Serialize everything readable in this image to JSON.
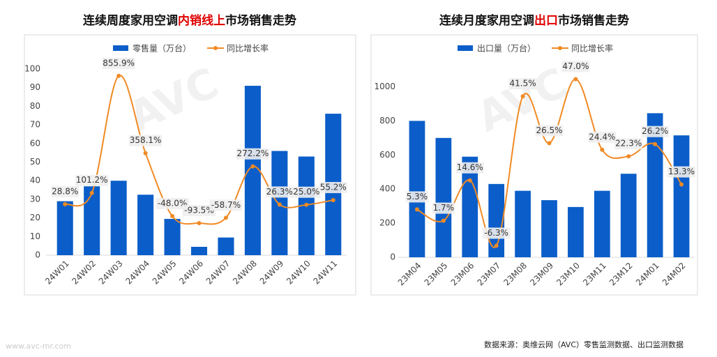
{
  "chart_data": [
    {
      "type": "bar-line",
      "title_parts": [
        "连续周度家用空调",
        "内销线上",
        "市场销售走势"
      ],
      "title_highlight": 1,
      "categories": [
        "24W01",
        "24W02",
        "24W03",
        "24W04",
        "24W05",
        "24W06",
        "24W07",
        "24W08",
        "24W09",
        "24W10",
        "24W11"
      ],
      "series": [
        {
          "name": "零售量（万台）",
          "color": "#0b5ec9",
          "values": [
            29,
            37,
            40,
            32.5,
            19.5,
            4.5,
            9.5,
            91,
            56,
            53,
            76
          ]
        },
        {
          "name": "同比增长率",
          "color": "#f08a24",
          "axis": "y2",
          "values": [
            28.8,
            101.2,
            855.9,
            358.1,
            -48.0,
            -93.5,
            -58.7,
            272.2,
            26.3,
            25.0,
            55.2
          ],
          "value_labels": [
            "28.8%",
            "101.2%",
            "855.9%",
            "358.1%",
            "-48.0%",
            "-93.5%",
            "-58.7%",
            "272.2%",
            "26.3%",
            "25.0%",
            "55.2%"
          ]
        }
      ],
      "ylim": [
        0,
        100
      ],
      "yticks": [
        0,
        10,
        20,
        30,
        40,
        50,
        60,
        70,
        80,
        90,
        100
      ],
      "y2lim": [
        -300,
        900
      ]
    },
    {
      "type": "bar-line",
      "title_parts": [
        "连续月度家用空调",
        "出口",
        "市场销售走势"
      ],
      "title_highlight": 1,
      "categories": [
        "23M04",
        "23M05",
        "23M06",
        "23M07",
        "23M08",
        "23M09",
        "23M10",
        "23M11",
        "23M12",
        "24M01",
        "24M02"
      ],
      "series": [
        {
          "name": "出口量（万台）",
          "color": "#0b5ec9",
          "values": [
            800,
            700,
            590,
            430,
            390,
            335,
            295,
            390,
            490,
            845,
            715
          ]
        },
        {
          "name": "同比增长率",
          "color": "#f08a24",
          "axis": "y2",
          "values": [
            5.3,
            1.7,
            14.6,
            -6.3,
            41.5,
            26.5,
            47.0,
            24.4,
            22.3,
            26.2,
            13.3
          ],
          "value_labels": [
            "5.3%",
            "1.7%",
            "14.6%",
            "-6.3%",
            "41.5%",
            "26.5%",
            "47.0%",
            "24.4%",
            "22.3%",
            "26.2%",
            "13.3%"
          ]
        }
      ],
      "ylim": [
        0,
        1100
      ],
      "yticks": [
        0,
        200,
        400,
        600,
        800,
        1000
      ],
      "y2lim": [
        -10,
        50
      ]
    }
  ],
  "watermark": [
    "AVC",
    "www.avc-mr.com"
  ],
  "source": "数据来源：奥维云网（AVC）零售监测数据、出口监测数据"
}
